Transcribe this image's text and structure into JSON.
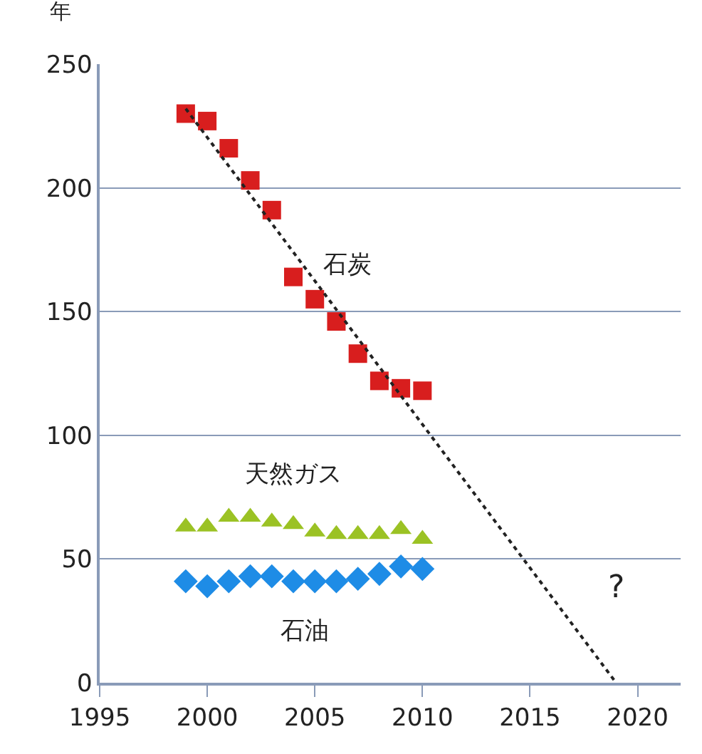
{
  "chart_data": {
    "type": "scatter",
    "ylabel": "年",
    "x": [
      1999,
      2000,
      2001,
      2002,
      2003,
      2004,
      2005,
      2006,
      2007,
      2008,
      2009,
      2010
    ],
    "series": [
      {
        "name": "石炭",
        "color": "#d81e1e",
        "marker": "square",
        "values": [
          230,
          227,
          216,
          203,
          191,
          164,
          155,
          146,
          133,
          122,
          119,
          118
        ]
      },
      {
        "name": "天然ガス",
        "color": "#9bc224",
        "marker": "triangle",
        "values": [
          63,
          63,
          67,
          67,
          65,
          64,
          61,
          60,
          60,
          60,
          62,
          58
        ]
      },
      {
        "name": "石油",
        "color": "#1e8ce6",
        "marker": "diamond",
        "values": [
          41,
          39,
          41,
          43,
          43,
          41,
          41,
          41,
          42,
          44,
          47,
          46
        ]
      },
      {
        "type": "line",
        "color": "#222222",
        "marker": "none",
        "line_style": "dotted",
        "x": [
          1999,
          2019
        ],
        "values": [
          232,
          0
        ]
      }
    ],
    "annotations": [
      "?"
    ],
    "xlim": [
      1995,
      2022
    ],
    "xticks": [
      1995,
      2000,
      2005,
      2010,
      2015,
      2020
    ],
    "ylim": [
      0,
      250
    ],
    "yticks": [
      0,
      50,
      100,
      150,
      200,
      250
    ],
    "grid": "y",
    "legend": false
  }
}
